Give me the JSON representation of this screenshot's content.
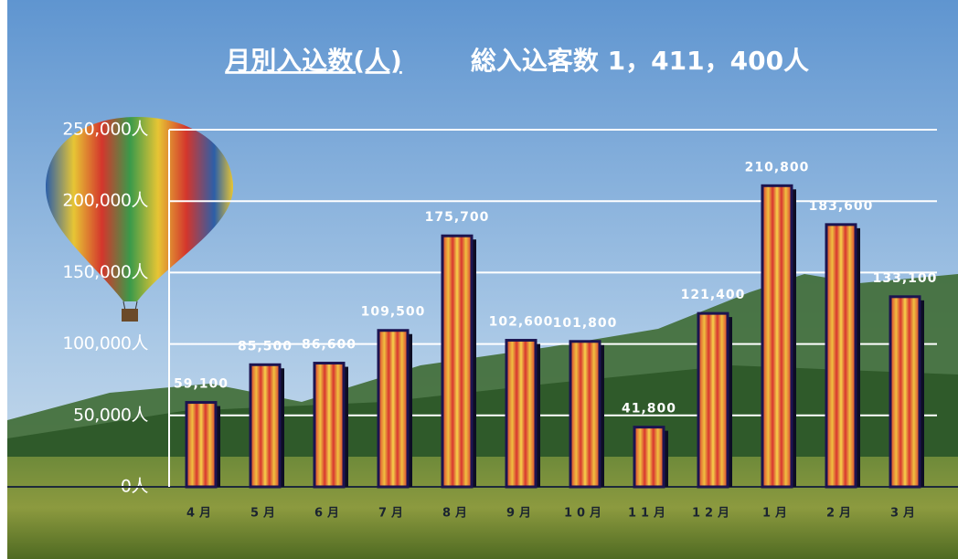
{
  "chart_data": {
    "type": "bar",
    "title": "月別入込数(人)",
    "subtitle": "総入込客数 1，411，400人",
    "categories": [
      "4月",
      "5月",
      "6月",
      "7月",
      "8月",
      "9月",
      "10月",
      "11月",
      "12月",
      "1月",
      "2月",
      "3月"
    ],
    "values": [
      59100,
      85500,
      86600,
      109500,
      175700,
      102600,
      101800,
      41800,
      121400,
      210800,
      183600,
      133100
    ],
    "value_labels": [
      "59,100",
      "85,500",
      "86,600",
      "109,500",
      "175,700",
      "102,600",
      "101,800",
      "41,800",
      "121,400",
      "210,800",
      "183,600",
      "133,100"
    ],
    "color": "#d8362f",
    "ylim": [
      0,
      250000
    ],
    "yticks": [
      {
        "value": 0,
        "label": "0人"
      },
      {
        "value": 50000,
        "label": "50,000人"
      },
      {
        "value": 100000,
        "label": "100,000人"
      },
      {
        "value": 150000,
        "label": "150,000人"
      },
      {
        "value": 200000,
        "label": "200,000人"
      },
      {
        "value": 250000,
        "label": "250,000人"
      }
    ],
    "grid": true
  }
}
